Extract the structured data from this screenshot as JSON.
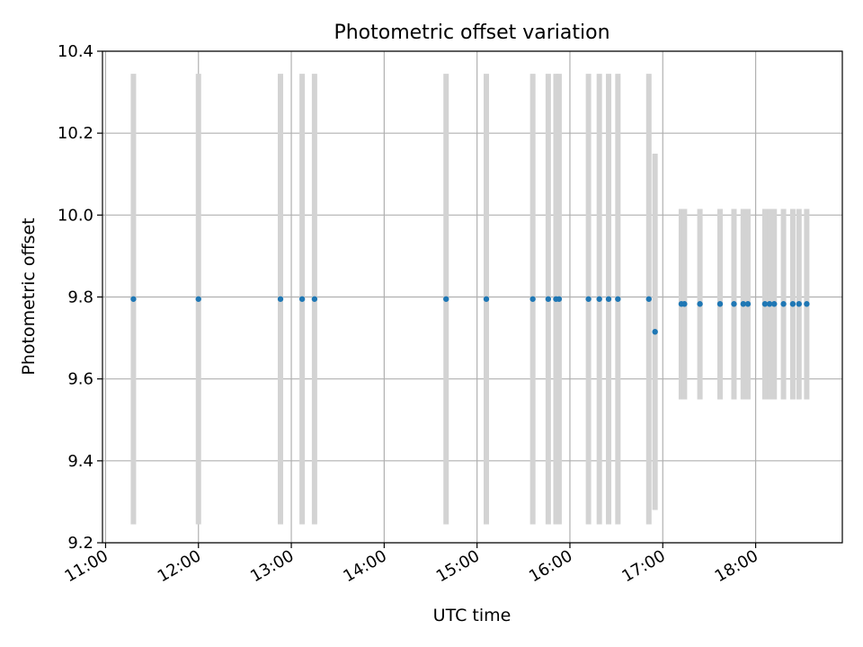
{
  "chart_data": {
    "type": "scatter",
    "title": "Photometric offset variation",
    "xlabel": "UTC time",
    "ylabel": "Photometric offset",
    "xlim": [
      "10:58",
      "18:56"
    ],
    "ylim": [
      9.2,
      10.4
    ],
    "x_ticks": [
      "11:00",
      "12:00",
      "13:00",
      "14:00",
      "15:00",
      "16:00",
      "17:00",
      "18:00"
    ],
    "y_ticks": [
      9.2,
      9.4,
      9.6,
      9.8,
      10.0,
      10.2,
      10.4
    ],
    "grid": true,
    "series": [
      {
        "points": [
          {
            "x": "11:18",
            "y": 9.795,
            "err_low": 9.245,
            "err_high": 10.345
          },
          {
            "x": "12:00",
            "y": 9.795,
            "err_low": 9.245,
            "err_high": 10.345
          },
          {
            "x": "12:53",
            "y": 9.795,
            "err_low": 9.245,
            "err_high": 10.345
          },
          {
            "x": "13:07",
            "y": 9.795,
            "err_low": 9.245,
            "err_high": 10.345
          },
          {
            "x": "13:15",
            "y": 9.795,
            "err_low": 9.245,
            "err_high": 10.345
          },
          {
            "x": "14:40",
            "y": 9.795,
            "err_low": 9.245,
            "err_high": 10.345
          },
          {
            "x": "15:06",
            "y": 9.795,
            "err_low": 9.245,
            "err_high": 10.345
          },
          {
            "x": "15:36",
            "y": 9.795,
            "err_low": 9.245,
            "err_high": 10.345
          },
          {
            "x": "15:46",
            "y": 9.795,
            "err_low": 9.245,
            "err_high": 10.345
          },
          {
            "x": "15:51",
            "y": 9.795,
            "err_low": 9.245,
            "err_high": 10.345
          },
          {
            "x": "15:53",
            "y": 9.795,
            "err_low": 9.245,
            "err_high": 10.345
          },
          {
            "x": "16:12",
            "y": 9.795,
            "err_low": 9.245,
            "err_high": 10.345
          },
          {
            "x": "16:19",
            "y": 9.795,
            "err_low": 9.245,
            "err_high": 10.345
          },
          {
            "x": "16:25",
            "y": 9.795,
            "err_low": 9.245,
            "err_high": 10.345
          },
          {
            "x": "16:31",
            "y": 9.795,
            "err_low": 9.245,
            "err_high": 10.345
          },
          {
            "x": "16:51",
            "y": 9.795,
            "err_low": 9.245,
            "err_high": 10.345
          },
          {
            "x": "16:55",
            "y": 9.715,
            "err_low": 9.28,
            "err_high": 10.15
          },
          {
            "x": "17:12",
            "y": 9.783,
            "err_low": 9.55,
            "err_high": 10.015
          },
          {
            "x": "17:14",
            "y": 9.783,
            "err_low": 9.55,
            "err_high": 10.015
          },
          {
            "x": "17:24",
            "y": 9.783,
            "err_low": 9.55,
            "err_high": 10.015
          },
          {
            "x": "17:37",
            "y": 9.783,
            "err_low": 9.55,
            "err_high": 10.015
          },
          {
            "x": "17:46",
            "y": 9.783,
            "err_low": 9.55,
            "err_high": 10.015
          },
          {
            "x": "17:52",
            "y": 9.783,
            "err_low": 9.55,
            "err_high": 10.015
          },
          {
            "x": "17:55",
            "y": 9.783,
            "err_low": 9.55,
            "err_high": 10.015
          },
          {
            "x": "18:06",
            "y": 9.783,
            "err_low": 9.55,
            "err_high": 10.015
          },
          {
            "x": "18:09",
            "y": 9.783,
            "err_low": 9.55,
            "err_high": 10.015
          },
          {
            "x": "18:12",
            "y": 9.783,
            "err_low": 9.55,
            "err_high": 10.015
          },
          {
            "x": "18:18",
            "y": 9.783,
            "err_low": 9.55,
            "err_high": 10.015
          },
          {
            "x": "18:24",
            "y": 9.783,
            "err_low": 9.55,
            "err_high": 10.015
          },
          {
            "x": "18:28",
            "y": 9.783,
            "err_low": 9.55,
            "err_high": 10.015
          },
          {
            "x": "18:33",
            "y": 9.783,
            "err_low": 9.55,
            "err_high": 10.015
          }
        ]
      }
    ],
    "colors": {
      "marker": "#1f77b4",
      "errorbar": "#d3d3d3",
      "grid": "#b0b0b0",
      "axes": "#000000"
    }
  }
}
